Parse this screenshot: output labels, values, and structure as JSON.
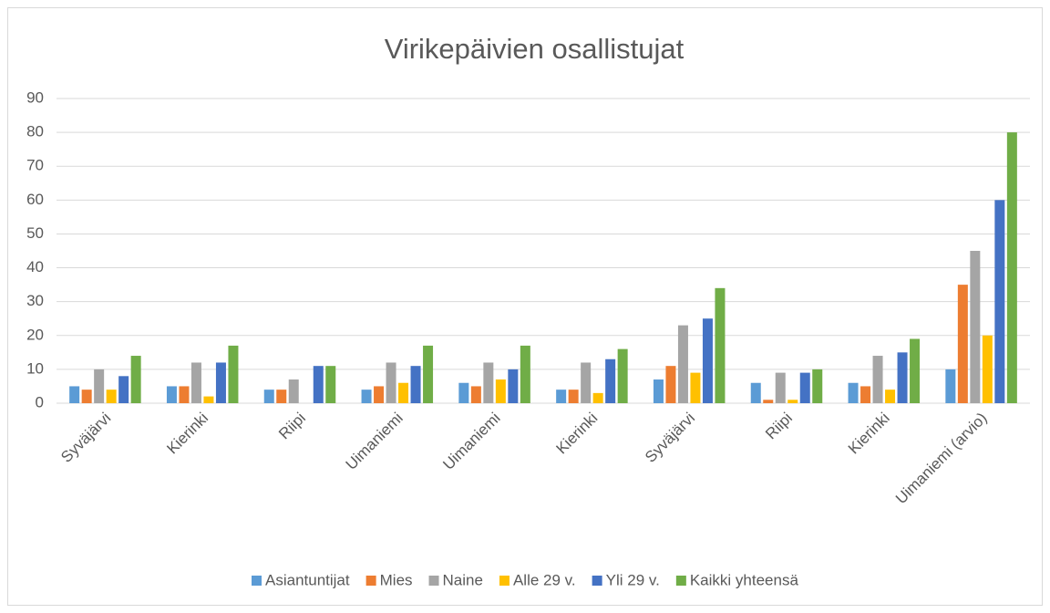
{
  "chart_data": {
    "type": "bar",
    "title": "Virikepäivien osallistujat",
    "categories": [
      "Syväjärvi",
      "Kierinki",
      "Riipi",
      "Uimaniemi",
      "Uimaniemi",
      "Kierinki",
      "Syväjärvi",
      "Riipi",
      "Kierinki",
      "Uimaniemi (arvio)"
    ],
    "series": [
      {
        "name": "Asiantuntijat",
        "color": "#5b9bd5",
        "values": [
          5,
          5,
          4,
          4,
          6,
          4,
          7,
          6,
          6,
          10
        ]
      },
      {
        "name": "Mies",
        "color": "#ed7d31",
        "values": [
          4,
          5,
          4,
          5,
          5,
          4,
          11,
          1,
          5,
          35
        ]
      },
      {
        "name": "Naine",
        "color": "#a5a5a5",
        "values": [
          10,
          12,
          7,
          12,
          12,
          12,
          23,
          9,
          14,
          45
        ]
      },
      {
        "name": "Alle 29 v.",
        "color": "#ffc000",
        "values": [
          4,
          2,
          0,
          6,
          7,
          3,
          9,
          1,
          4,
          20
        ]
      },
      {
        "name": "Yli 29 v.",
        "color": "#4472c4",
        "values": [
          8,
          12,
          11,
          11,
          10,
          13,
          25,
          9,
          15,
          60
        ]
      },
      {
        "name": "Kaikki yhteensä",
        "color": "#70ad47",
        "values": [
          14,
          17,
          11,
          17,
          17,
          16,
          34,
          10,
          19,
          80
        ]
      }
    ],
    "ylim": [
      0,
      90
    ],
    "yticks": [
      0,
      10,
      20,
      30,
      40,
      50,
      60,
      70,
      80,
      90
    ],
    "grid": true,
    "legend": "bottom"
  }
}
